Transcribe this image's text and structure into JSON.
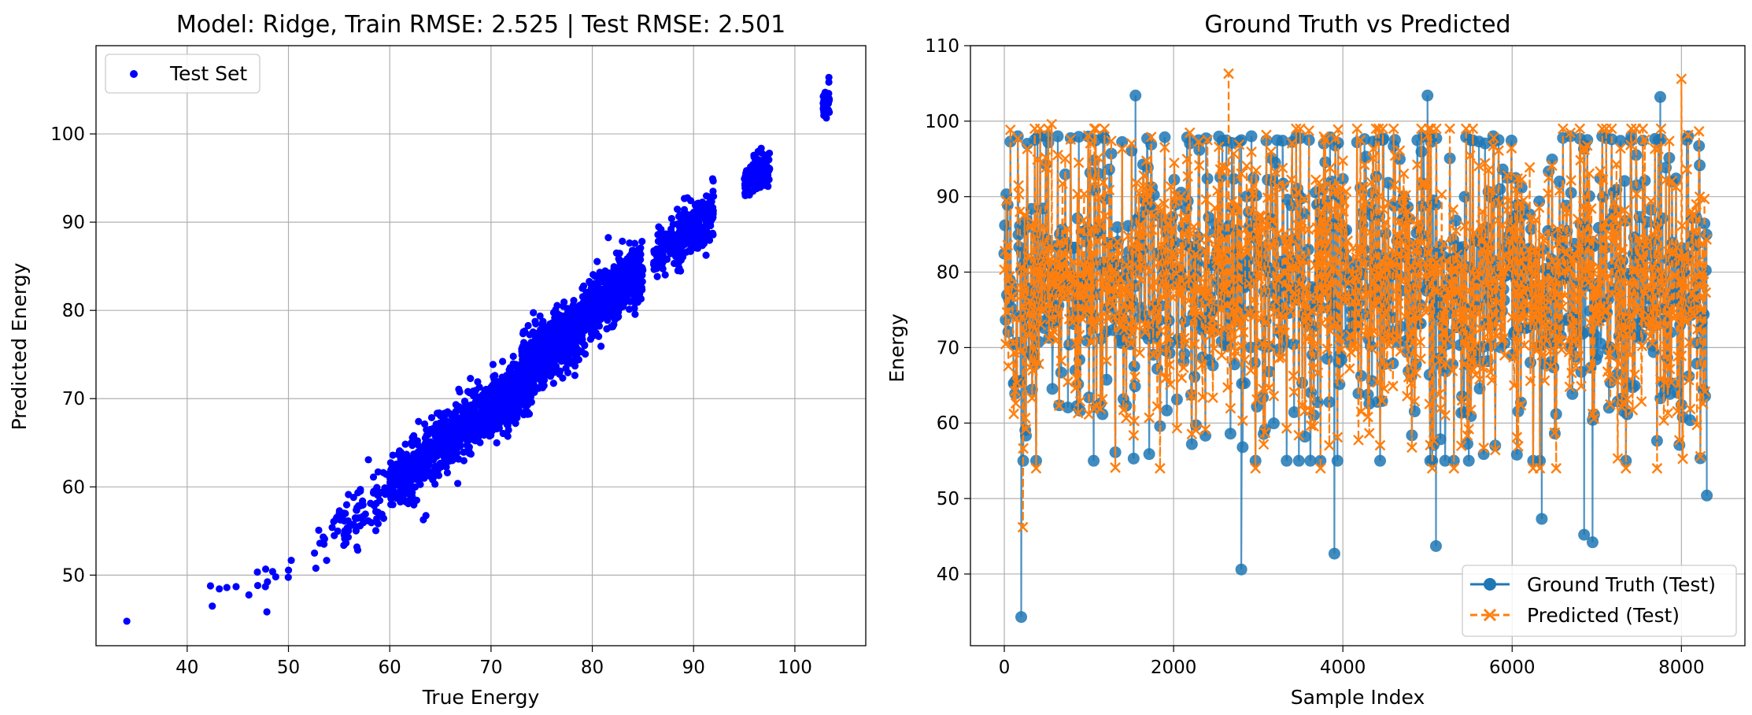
{
  "chart_data": [
    {
      "type": "scatter",
      "title": "Model: Ridge, Train RMSE: 2.525 | Test RMSE: 2.501",
      "xlabel": "True Energy",
      "ylabel": "Predicted Energy",
      "xlim": [
        31.0,
        107.0
      ],
      "ylim": [
        42.0,
        110.0
      ],
      "xticks": [
        40,
        50,
        60,
        70,
        80,
        90,
        100
      ],
      "yticks": [
        50,
        60,
        70,
        80,
        90,
        100
      ],
      "grid": true,
      "legend_position": "upper-left",
      "series": [
        {
          "name": "Test Set",
          "color": "#0000ff",
          "clusters": [
            {
              "x_range": [
                34,
                36
              ],
              "y_center": 46.5,
              "y_spread": 0.6,
              "n": 1
            },
            {
              "x_range": [
                40,
                45
              ],
              "y_center": 47.5,
              "y_spread": 2.0,
              "n": 5
            },
            {
              "x_range": [
                46,
                52
              ],
              "y_center": 50.5,
              "y_spread": 2.2,
              "n": 12
            },
            {
              "x_range": [
                52,
                56
              ],
              "y_center": 54.5,
              "y_spread": 2.8,
              "n": 18
            },
            {
              "x_range": [
                55,
                60
              ],
              "y_center": 57.5,
              "y_spread": 3.2,
              "n": 70
            },
            {
              "x_range": [
                60,
                65
              ],
              "y_center": 62.5,
              "y_spread": 3.0,
              "n": 320
            },
            {
              "x_range": [
                65,
                70
              ],
              "y_center": 67.0,
              "y_spread": 2.8,
              "n": 420
            },
            {
              "x_range": [
                70,
                74
              ],
              "y_center": 70.5,
              "y_spread": 2.6,
              "n": 520
            },
            {
              "x_range": [
                73,
                79
              ],
              "y_center": 76.0,
              "y_spread": 3.0,
              "n": 620
            },
            {
              "x_range": [
                79,
                85
              ],
              "y_center": 82.0,
              "y_spread": 3.2,
              "n": 520
            },
            {
              "x_range": [
                86,
                92
              ],
              "y_center": 88.5,
              "y_spread": 2.6,
              "n": 300
            },
            {
              "x_range": [
                95,
                97.5
              ],
              "y_center": 95.5,
              "y_spread": 2.0,
              "n": 150
            },
            {
              "x_range": [
                102.8,
                103.4
              ],
              "y_center": 103.5,
              "y_spread": 1.5,
              "n": 60
            }
          ]
        }
      ]
    },
    {
      "type": "line",
      "title": "Ground Truth vs Predicted",
      "xlabel": "Sample Index",
      "ylabel": "Energy",
      "xlim": [
        -400,
        8750
      ],
      "ylim": [
        30.5,
        110.0
      ],
      "xticks": [
        0,
        2000,
        4000,
        6000,
        8000
      ],
      "yticks": [
        40,
        50,
        60,
        70,
        80,
        90,
        100,
        110
      ],
      "grid": true,
      "legend_position": "lower-right",
      "n_points": 8300,
      "series": [
        {
          "name": "Ground Truth (Test)",
          "color": "#1f77b4",
          "marker": "o",
          "range": [
            34.3,
            103.4
          ],
          "notable_points": [
            {
              "x": 200,
              "y": 34.3
            },
            {
              "x": 2800,
              "y": 40.6
            },
            {
              "x": 3900,
              "y": 42.7
            },
            {
              "x": 5100,
              "y": 43.7
            },
            {
              "x": 6950,
              "y": 44.2
            },
            {
              "x": 6850,
              "y": 45.2
            },
            {
              "x": 6350,
              "y": 47.3
            },
            {
              "x": 8300,
              "y": 50.4
            },
            {
              "x": 1550,
              "y": 103.4
            },
            {
              "x": 5000,
              "y": 103.4
            },
            {
              "x": 7750,
              "y": 103.2
            }
          ]
        },
        {
          "name": "Predicted (Test)",
          "color": "#ff7f0e",
          "marker": "x",
          "line_style": "dashed",
          "range": [
            46.2,
            106.3
          ],
          "notable_points": [
            {
              "x": 220,
              "y": 46.2
            },
            {
              "x": 2650,
              "y": 106.3
            },
            {
              "x": 8000,
              "y": 105.6
            },
            {
              "x": 560,
              "y": 99.6
            }
          ]
        }
      ]
    }
  ]
}
